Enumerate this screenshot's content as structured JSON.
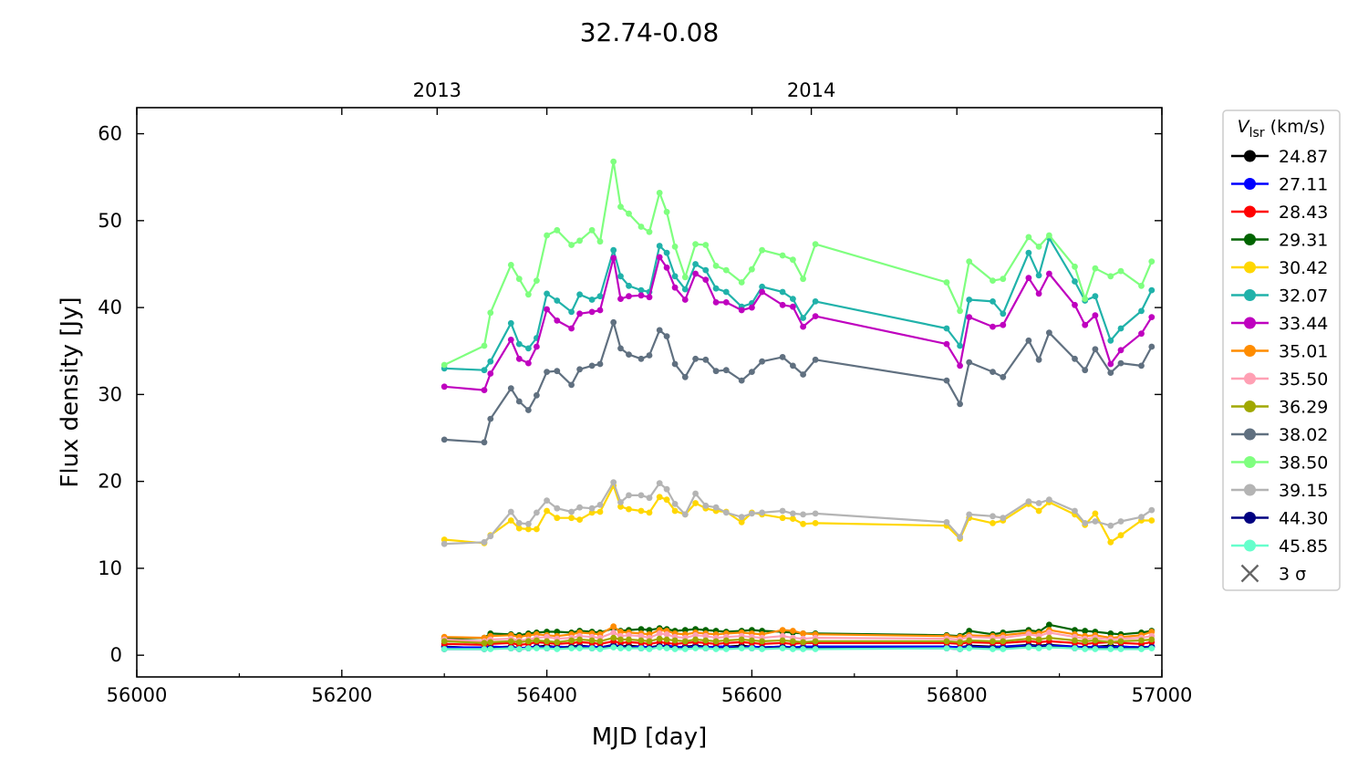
{
  "chart_data": {
    "type": "line",
    "title": "32.74-0.08",
    "xlabel": "MJD [day]",
    "ylabel": "Flux density [Jy]",
    "xlim": [
      56000,
      57000
    ],
    "ylim": [
      -2.5,
      63
    ],
    "xticks": [
      "56000",
      "56200",
      "56400",
      "56600",
      "56800",
      "57000"
    ],
    "yticks": [
      "0",
      "10",
      "20",
      "30",
      "40",
      "50",
      "60"
    ],
    "top_axis": {
      "ticks": [
        {
          "label": "2013",
          "mjd": 56293
        },
        {
          "label": "2014",
          "mjd": 56658
        }
      ]
    },
    "legend": {
      "title_main": "V",
      "title_sub": "lsr",
      "title_unit": " (km/s)",
      "sigma_label": "3 σ",
      "placement": "outside-right-top"
    },
    "x": [
      56300,
      56339,
      56345,
      56365,
      56373,
      56382,
      56390,
      56400,
      56410,
      56424,
      56432,
      56444,
      56452,
      56465,
      56472,
      56480,
      56492,
      56500,
      56510,
      56517,
      56525,
      56535,
      56545,
      56555,
      56565,
      56575,
      56590,
      56600,
      56610,
      56630,
      56640,
      56650,
      56662,
      56790,
      56803,
      56812,
      56835,
      56845,
      56870,
      56880,
      56890,
      56915,
      56925,
      56935,
      56950,
      56960,
      56980,
      56990
    ],
    "series": [
      {
        "name": "24.87",
        "color": "#000000",
        "values": [
          1.0,
          0.8,
          0.9,
          1.0,
          0.8,
          0.9,
          1.0,
          1.1,
          0.9,
          1.0,
          1.1,
          1.0,
          0.9,
          1.2,
          1.0,
          1.1,
          1.0,
          0.9,
          1.1,
          1.0,
          0.9,
          1.0,
          1.1,
          1.0,
          0.9,
          1.0,
          1.1,
          1.0,
          0.9,
          1.0,
          0.8,
          0.9,
          1.0,
          1.0,
          0.9,
          1.1,
          1.0,
          1.0,
          1.2,
          1.1,
          1.2,
          1.0,
          0.9,
          1.0,
          1.1,
          1.0,
          0.9,
          1.0
        ]
      },
      {
        "name": "27.11",
        "color": "#0000ff",
        "values": [
          0.9,
          0.9,
          1.0,
          0.9,
          0.8,
          0.9,
          1.0,
          0.9,
          1.0,
          0.9,
          1.0,
          1.0,
          0.9,
          1.1,
          1.0,
          0.9,
          1.0,
          0.9,
          1.0,
          1.1,
          1.0,
          0.9,
          1.0,
          0.9,
          1.0,
          1.0,
          0.9,
          1.0,
          0.9,
          1.0,
          0.9,
          1.0,
          1.0,
          1.0,
          0.9,
          1.0,
          0.9,
          1.0,
          1.1,
          1.0,
          1.1,
          1.0,
          0.9,
          1.0,
          0.9,
          1.0,
          0.9,
          1.0
        ]
      },
      {
        "name": "28.43",
        "color": "#ff0000",
        "values": [
          1.3,
          1.2,
          1.3,
          1.4,
          1.2,
          1.3,
          1.5,
          1.4,
          1.3,
          1.4,
          1.5,
          1.4,
          1.3,
          1.6,
          1.4,
          1.5,
          1.4,
          1.3,
          1.5,
          1.4,
          1.3,
          1.4,
          1.5,
          1.4,
          1.3,
          1.4,
          1.5,
          1.4,
          1.3,
          1.4,
          1.3,
          1.4,
          1.4,
          1.4,
          1.3,
          1.5,
          1.4,
          1.4,
          1.6,
          1.5,
          1.6,
          1.4,
          1.3,
          1.4,
          1.5,
          1.4,
          1.3,
          1.5
        ]
      },
      {
        "name": "29.31",
        "color": "#006400",
        "values": [
          1.9,
          2.0,
          2.5,
          2.4,
          2.3,
          2.5,
          2.6,
          2.7,
          2.7,
          2.6,
          2.8,
          2.7,
          2.6,
          3.1,
          2.8,
          2.9,
          3.0,
          2.9,
          3.1,
          3.0,
          2.8,
          2.9,
          3.0,
          2.9,
          2.8,
          2.7,
          2.8,
          2.9,
          2.8,
          2.7,
          2.6,
          2.5,
          2.5,
          2.3,
          2.2,
          2.8,
          2.4,
          2.6,
          2.9,
          2.7,
          3.5,
          2.9,
          2.8,
          2.7,
          2.5,
          2.4,
          2.6,
          2.8
        ]
      },
      {
        "name": "30.42",
        "color": "#ffd700",
        "values": [
          13.3,
          12.9,
          13.8,
          15.5,
          14.6,
          14.5,
          14.5,
          16.6,
          15.8,
          15.8,
          15.6,
          16.4,
          16.5,
          19.5,
          17.1,
          16.8,
          16.6,
          16.4,
          18.2,
          17.9,
          16.6,
          16.2,
          17.5,
          16.9,
          16.6,
          16.5,
          15.3,
          16.4,
          16.2,
          15.8,
          15.7,
          15.1,
          15.2,
          14.9,
          13.4,
          15.8,
          15.2,
          15.5,
          17.4,
          16.6,
          17.6,
          16.2,
          15.0,
          16.3,
          13.0,
          13.8,
          15.5,
          15.5
        ]
      },
      {
        "name": "32.07",
        "color": "#20b2aa",
        "values": [
          33.0,
          32.8,
          33.8,
          38.2,
          35.8,
          35.3,
          36.5,
          41.6,
          40.8,
          39.5,
          41.5,
          40.9,
          41.3,
          46.6,
          43.6,
          42.5,
          42.0,
          41.8,
          47.1,
          46.3,
          43.6,
          42.1,
          45.0,
          44.3,
          42.2,
          41.8,
          40.1,
          40.5,
          42.4,
          41.8,
          41.0,
          38.8,
          40.7,
          37.6,
          35.6,
          40.9,
          40.7,
          39.3,
          46.3,
          43.7,
          48.0,
          43.0,
          40.8,
          41.3,
          36.2,
          37.6,
          39.6,
          42.0
        ]
      },
      {
        "name": "33.44",
        "color": "#bf00bf",
        "values": [
          30.9,
          30.5,
          32.4,
          36.3,
          34.1,
          33.6,
          35.5,
          39.8,
          38.5,
          37.6,
          39.3,
          39.5,
          39.7,
          45.7,
          41.0,
          41.3,
          41.4,
          41.2,
          45.8,
          44.6,
          42.3,
          40.9,
          43.9,
          43.2,
          40.6,
          40.6,
          39.7,
          40.0,
          41.8,
          40.3,
          40.1,
          37.8,
          39.0,
          35.8,
          33.3,
          38.9,
          37.8,
          38.0,
          43.4,
          41.6,
          43.9,
          40.3,
          38.0,
          39.1,
          33.5,
          35.1,
          37.0,
          38.9
        ]
      },
      {
        "name": "35.01",
        "color": "#ff8c00",
        "values": [
          2.1,
          2.0,
          2.2,
          2.3,
          2.1,
          2.3,
          2.4,
          2.3,
          2.2,
          2.4,
          2.6,
          2.5,
          2.4,
          3.3,
          2.7,
          2.6,
          2.5,
          2.4,
          2.9,
          2.8,
          2.5,
          2.4,
          2.6,
          2.5,
          2.4,
          2.5,
          2.6,
          2.5,
          2.4,
          2.9,
          2.8,
          2.5,
          2.4,
          2.2,
          2.1,
          2.3,
          2.2,
          2.3,
          2.6,
          2.5,
          2.9,
          2.4,
          2.2,
          2.3,
          2.0,
          2.1,
          2.3,
          2.7
        ]
      },
      {
        "name": "35.50",
        "color": "#ffa0b4",
        "values": [
          1.8,
          1.6,
          1.8,
          1.9,
          1.7,
          1.8,
          2.0,
          2.1,
          1.9,
          2.0,
          2.2,
          2.1,
          2.0,
          2.6,
          2.2,
          2.3,
          2.2,
          2.0,
          2.5,
          2.4,
          2.1,
          2.0,
          2.3,
          2.2,
          2.0,
          2.1,
          2.2,
          2.1,
          2.0,
          2.2,
          2.0,
          1.9,
          2.0,
          1.9,
          1.8,
          2.1,
          2.0,
          2.0,
          2.4,
          2.2,
          2.6,
          2.1,
          1.9,
          2.0,
          1.8,
          1.9,
          2.0,
          2.2
        ]
      },
      {
        "name": "36.29",
        "color": "#a0a800",
        "values": [
          1.6,
          1.4,
          1.5,
          1.6,
          1.5,
          1.6,
          1.7,
          1.6,
          1.5,
          1.7,
          1.8,
          1.7,
          1.6,
          2.0,
          1.8,
          1.8,
          1.7,
          1.6,
          1.9,
          1.8,
          1.7,
          1.6,
          1.8,
          1.7,
          1.6,
          1.7,
          1.8,
          1.7,
          1.6,
          1.7,
          1.6,
          1.5,
          1.6,
          1.6,
          1.5,
          1.7,
          1.6,
          1.6,
          1.9,
          1.8,
          2.0,
          1.7,
          1.6,
          1.7,
          1.5,
          1.6,
          1.7,
          1.8
        ]
      },
      {
        "name": "38.02",
        "color": "#607080",
        "values": [
          24.8,
          24.5,
          27.2,
          30.7,
          29.2,
          28.2,
          29.9,
          32.6,
          32.7,
          31.1,
          32.9,
          33.3,
          33.5,
          38.3,
          35.3,
          34.6,
          34.1,
          34.5,
          37.4,
          36.7,
          33.5,
          32.0,
          34.1,
          34.0,
          32.7,
          32.8,
          31.6,
          32.6,
          33.8,
          34.3,
          33.3,
          32.3,
          34.0,
          31.6,
          28.9,
          33.7,
          32.6,
          32.0,
          36.2,
          34.0,
          37.1,
          34.1,
          32.8,
          35.2,
          32.5,
          33.6,
          33.3,
          35.5
        ]
      },
      {
        "name": "38.50",
        "color": "#7fff7f",
        "values": [
          33.4,
          35.6,
          39.4,
          44.9,
          43.3,
          41.5,
          43.1,
          48.3,
          48.9,
          47.2,
          47.7,
          48.9,
          47.6,
          56.8,
          51.6,
          50.8,
          49.3,
          48.7,
          53.2,
          51.0,
          47.0,
          43.5,
          47.3,
          47.2,
          44.8,
          44.3,
          42.9,
          44.4,
          46.6,
          46.0,
          45.5,
          43.3,
          47.3,
          42.9,
          39.6,
          45.3,
          43.1,
          43.3,
          48.1,
          47.0,
          48.3,
          44.7,
          41.0,
          44.5,
          43.6,
          44.2,
          42.5,
          45.3
        ]
      },
      {
        "name": "39.15",
        "color": "#b4b4b4",
        "values": [
          12.8,
          13.0,
          13.7,
          16.5,
          15.2,
          15.1,
          16.4,
          17.8,
          16.9,
          16.5,
          17.0,
          16.9,
          17.3,
          19.9,
          17.6,
          18.4,
          18.4,
          18.1,
          19.8,
          19.1,
          17.4,
          16.2,
          18.6,
          17.2,
          17.0,
          16.4,
          15.9,
          16.3,
          16.4,
          16.6,
          16.3,
          16.2,
          16.3,
          15.3,
          13.6,
          16.2,
          16.0,
          15.8,
          17.7,
          17.5,
          17.9,
          16.6,
          15.2,
          15.4,
          14.9,
          15.4,
          15.9,
          16.7
        ]
      },
      {
        "name": "44.30",
        "color": "#000080",
        "values": [
          0.7,
          0.7,
          0.8,
          0.8,
          0.7,
          0.8,
          0.9,
          0.8,
          0.8,
          0.9,
          0.9,
          0.8,
          0.8,
          1.0,
          0.9,
          0.9,
          0.8,
          0.8,
          1.0,
          0.9,
          0.8,
          0.8,
          0.9,
          0.8,
          0.8,
          0.8,
          0.9,
          0.8,
          0.8,
          0.9,
          0.8,
          0.8,
          0.8,
          0.8,
          0.7,
          0.9,
          0.8,
          0.8,
          1.0,
          0.9,
          1.0,
          0.8,
          0.8,
          0.8,
          0.8,
          0.8,
          0.8,
          0.9
        ]
      },
      {
        "name": "45.85",
        "color": "#66ffcc",
        "values": [
          0.7,
          0.7,
          0.7,
          0.8,
          0.7,
          0.8,
          0.8,
          0.8,
          0.7,
          0.8,
          0.8,
          0.8,
          0.7,
          0.9,
          0.8,
          0.8,
          0.8,
          0.7,
          0.9,
          0.8,
          0.7,
          0.7,
          0.8,
          0.8,
          0.7,
          0.7,
          0.8,
          0.8,
          0.7,
          0.8,
          0.7,
          0.7,
          0.7,
          0.8,
          0.7,
          0.8,
          0.7,
          0.7,
          0.9,
          0.8,
          0.9,
          0.8,
          0.7,
          0.7,
          0.7,
          0.7,
          0.7,
          0.8
        ]
      }
    ]
  }
}
